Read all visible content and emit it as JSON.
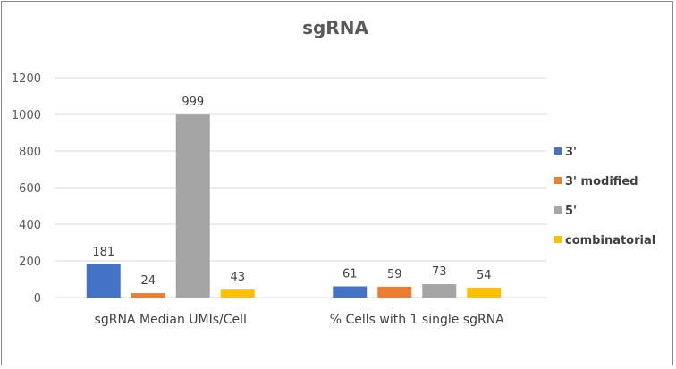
{
  "chart_data": {
    "type": "bar",
    "title": "sgRNA",
    "categories": [
      "sgRNA Median UMIs/Cell",
      "% Cells with 1 single sgRNA"
    ],
    "series": [
      {
        "name": "3'",
        "color": "#4472C4",
        "values": [
          181,
          61
        ]
      },
      {
        "name": "3' modified",
        "color": "#ED7D31",
        "values": [
          24,
          59
        ]
      },
      {
        "name": "5'",
        "color": "#A5A5A5",
        "values": [
          999,
          73
        ]
      },
      {
        "name": "combinatorial",
        "color": "#FFC000",
        "values": [
          43,
          54
        ]
      }
    ],
    "yticks": [
      "0",
      "200",
      "400",
      "600",
      "800",
      "1000",
      "1200"
    ],
    "ylim": [
      0,
      1200
    ],
    "xlabel": "",
    "ylabel": "",
    "grid": true,
    "legend": "right",
    "data_labels": true
  }
}
